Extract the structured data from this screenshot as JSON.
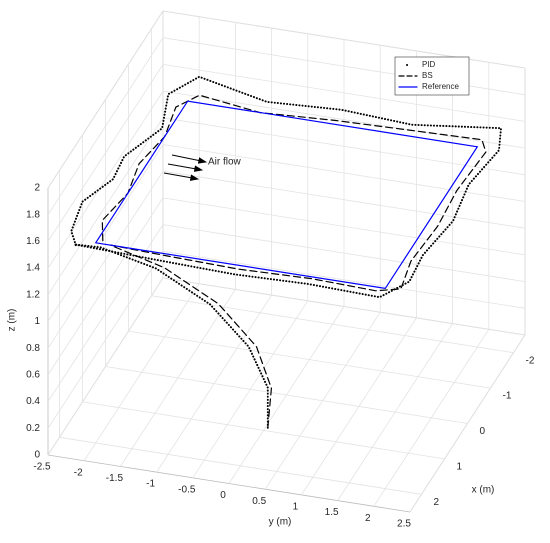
{
  "chart_data": {
    "type": "line3d",
    "xlabel": "x (m)",
    "ylabel": "y (m)",
    "zlabel": "z (m)",
    "annotation": "Air flow",
    "xlim": [
      -2.5,
      2.5
    ],
    "ylim": [
      -2.5,
      2.5
    ],
    "zlim": [
      0,
      2
    ],
    "xticks": [
      -2,
      -1,
      0,
      1,
      2
    ],
    "yticks": [
      -2.5,
      -2,
      -1.5,
      -1,
      -0.5,
      0,
      0.5,
      1,
      1.5,
      2,
      2.5
    ],
    "zticks": [
      0,
      0.2,
      0.4,
      0.6,
      0.8,
      1,
      1.2,
      1.4,
      1.6,
      1.8,
      2
    ],
    "grid": true,
    "legend_position": "upper right",
    "series": [
      {
        "name": "PID",
        "color": "#000000",
        "style": "dotted",
        "x": [
          1.6,
          1.6,
          1.65,
          1.75,
          1.9,
          2.1,
          2.3,
          2.2,
          2.25,
          2.2,
          2.25,
          1.9,
          1.0,
          0,
          -1.0,
          -2.0,
          -2.4,
          -2.3,
          -2.4,
          -2.3,
          -2.5,
          -2.1,
          -1.2,
          -0.5,
          0.3,
          1.0,
          1.8,
          2.2
        ],
        "y": [
          0.25,
          0.25,
          0,
          -0.5,
          -1.2,
          -1.9,
          -2.2,
          -1.0,
          0,
          1.0,
          2.0,
          2.3,
          2.2,
          2.3,
          2.2,
          2.3,
          2.2,
          1.0,
          0,
          -1.0,
          -2.0,
          -2.3,
          -2.1,
          -2.4,
          -2.3,
          -2.5,
          -2.4,
          -2.2
        ],
        "z": [
          0.2,
          0.5,
          0.8,
          1.1,
          1.35,
          1.5,
          1.55,
          1.5,
          1.5,
          1.5,
          1.5,
          1.55,
          1.5,
          1.5,
          1.5,
          1.5,
          1.55,
          1.5,
          1.5,
          1.5,
          1.55,
          1.5,
          1.5,
          1.45,
          1.5,
          1.5,
          1.5,
          1.5
        ]
      },
      {
        "name": "BS",
        "color": "#000000",
        "style": "dashed",
        "x": [
          1.6,
          1.6,
          1.62,
          1.7,
          1.85,
          2.0,
          2.05,
          2.1,
          2.05,
          2.1,
          1.95,
          1.2,
          0.2,
          -0.8,
          -1.9,
          -2.2,
          -2.15,
          -2.1,
          -2.0,
          -2.2,
          -1.8,
          -1.0,
          -0.2,
          0.6,
          1.4,
          2.0
        ],
        "y": [
          0.25,
          0.3,
          0.1,
          -0.4,
          -1.1,
          -1.8,
          -1.0,
          0,
          1.0,
          1.9,
          2.2,
          2.1,
          2.15,
          2.1,
          2.15,
          2.0,
          1.0,
          0,
          -1.0,
          -1.9,
          -2.1,
          -2.0,
          -2.1,
          -2.0,
          -2.1,
          -1.9
        ],
        "z": [
          0.2,
          0.5,
          0.8,
          1.1,
          1.35,
          1.5,
          1.5,
          1.5,
          1.5,
          1.5,
          1.5,
          1.5,
          1.5,
          1.5,
          1.5,
          1.5,
          1.5,
          1.5,
          1.5,
          1.5,
          1.5,
          1.5,
          1.5,
          1.5,
          1.5,
          1.5
        ]
      },
      {
        "name": "Reference",
        "color": "#0000ff",
        "style": "solid",
        "x": [
          2,
          2,
          -2,
          -2,
          2
        ],
        "y": [
          -2,
          2,
          2,
          -2,
          -2
        ],
        "z": [
          1.5,
          1.5,
          1.5,
          1.5,
          1.5
        ]
      }
    ]
  }
}
